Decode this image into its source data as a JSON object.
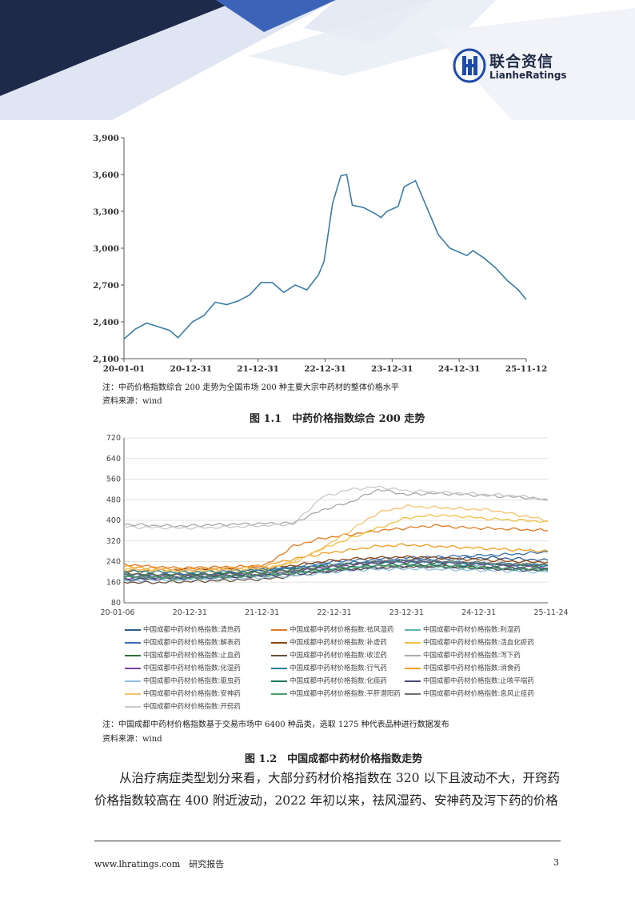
{
  "header": {
    "logo_cn": "联合资信",
    "logo_en": "LianheRatings",
    "colors": {
      "navy": "#1e2a4a",
      "blue": "#3b63b8",
      "light": "#c9d3ea"
    }
  },
  "figure1": {
    "note": "注：中药价格指数综合 200 走势为全国市场 200 种主要大宗中药材的整体价格水平",
    "source": "资料来源：wind",
    "caption": "图 1.1　中药价格指数综合 200 走势"
  },
  "figure2": {
    "note": "注：中国成都中药材价格指数基于交易市场中 6400 种品类，选取 1275 种代表品种进行数据发布",
    "source": "资料来源：wind",
    "caption": "图 1.2　中国成都中药材价格指数走势"
  },
  "body": {
    "para_line1": "从治疗病症类型划分来看，大部分药材价格指数在 320 以下且波动不大，开窍药",
    "para_line2": "价格指数较高在 400 附近波动，2022 年初以来，祛风湿药、安神药及泻下药的价格"
  },
  "footer": {
    "website": "www.lhratings.com　研究报告",
    "page_number": "3"
  },
  "chart_data": [
    {
      "type": "line",
      "x_ticks": [
        "20-01-01",
        "20-12-31",
        "21-12-31",
        "22-12-31",
        "23-12-31",
        "24-12-31",
        "25-11-12"
      ],
      "y_ticks": [
        "2,100",
        "2,400",
        "2,700",
        "3,000",
        "3,300",
        "3,600",
        "3,900"
      ],
      "ylim": [
        2100,
        3900
      ],
      "color": "#3a7ca5",
      "grid": false,
      "series": [
        {
          "x": [
            "2020-01-01",
            "2020-03-01",
            "2020-05-01",
            "2020-07-01",
            "2020-09-01",
            "2020-10-15",
            "2020-12-31",
            "2021-03-01",
            "2021-05-01",
            "2021-07-01",
            "2021-09-01",
            "2021-11-01",
            "2021-12-31",
            "2022-03-01",
            "2022-05-01",
            "2022-07-01",
            "2022-09-01",
            "2022-11-01",
            "2022-12-01",
            "2022-12-15",
            "2023-01-15",
            "2023-03-01",
            "2023-04-01",
            "2023-05-01",
            "2023-07-01",
            "2023-09-01",
            "2023-10-01",
            "2023-11-01",
            "2023-12-31",
            "2024-02-01",
            "2024-04-01",
            "2024-06-01",
            "2024-08-01",
            "2024-10-01",
            "2024-12-31",
            "2025-02-01",
            "2025-04-01",
            "2025-06-01",
            "2025-08-01",
            "2025-10-01",
            "2025-11-12"
          ],
          "values": [
            2260,
            2340,
            2390,
            2360,
            2330,
            2270,
            2400,
            2450,
            2560,
            2540,
            2570,
            2620,
            2720,
            2720,
            2640,
            2700,
            2660,
            2780,
            2890,
            3030,
            3360,
            3590,
            3600,
            3350,
            3330,
            3280,
            3250,
            3300,
            3340,
            3500,
            3550,
            3330,
            3110,
            3000,
            2940,
            2980,
            2920,
            2840,
            2740,
            2660,
            2580
          ]
        }
      ]
    },
    {
      "type": "line",
      "x_ticks": [
        "20-01-06",
        "20-12-31",
        "21-12-31",
        "22-12-31",
        "23-12-31",
        "24-12-31",
        "25-11-24"
      ],
      "y_ticks": [
        "80",
        "160",
        "240",
        "320",
        "400",
        "480",
        "560",
        "640",
        "720"
      ],
      "ylim": [
        80,
        720
      ],
      "grid": true,
      "series": [
        {
          "name": "中国成都中药材价格指数:清热药",
          "color": "#2e5e8c",
          "values": [
            180,
            185,
            190,
            188,
            200,
            210,
            215,
            225,
            230,
            240,
            245,
            250,
            252,
            255,
            250,
            245
          ]
        },
        {
          "name": "中国成都中药材价格指数:祛风湿药",
          "color": "#e07b24",
          "values": [
            230,
            220,
            215,
            218,
            220,
            225,
            300,
            330,
            345,
            360,
            370,
            380,
            372,
            368,
            365,
            360
          ]
        },
        {
          "name": "中国成都中药材价格指数:利湿药",
          "color": "#5bb5b0",
          "values": [
            170,
            175,
            172,
            178,
            182,
            190,
            200,
            210,
            220,
            225,
            230,
            228,
            225,
            230,
            228,
            226
          ]
        },
        {
          "name": "中国成都中药材价格指数:解表药",
          "color": "#3a6fb0",
          "values": [
            190,
            188,
            192,
            190,
            195,
            205,
            220,
            235,
            245,
            250,
            255,
            258,
            262,
            265,
            270,
            278
          ]
        },
        {
          "name": "中国成都中药材价格指数:补虚药",
          "color": "#8b4513",
          "values": [
            200,
            205,
            208,
            210,
            212,
            215,
            225,
            240,
            250,
            255,
            258,
            255,
            250,
            245,
            240,
            238
          ]
        },
        {
          "name": "中国成都中药材价格指数:活血化瘀药",
          "color": "#f0c040",
          "values": [
            210,
            205,
            200,
            202,
            205,
            210,
            240,
            290,
            330,
            370,
            410,
            420,
            415,
            405,
            400,
            395
          ]
        },
        {
          "name": "中国成都中药材价格指数:止血药",
          "color": "#2f6f3a",
          "values": [
            195,
            190,
            188,
            192,
            196,
            200,
            210,
            220,
            230,
            235,
            238,
            236,
            234,
            230,
            226,
            224
          ]
        },
        {
          "name": "中国成都中药材价格指数:收涩药",
          "color": "#6b4f3a",
          "values": [
            160,
            158,
            162,
            165,
            168,
            172,
            185,
            200,
            210,
            215,
            220,
            222,
            220,
            215,
            212,
            210
          ]
        },
        {
          "name": "中国成都中药材价格指数:泻下药",
          "color": "#a9a9a9",
          "values": [
            385,
            380,
            378,
            382,
            385,
            388,
            390,
            440,
            470,
            520,
            500,
            505,
            500,
            495,
            490,
            480
          ]
        },
        {
          "name": "中国成都中药材价格指数:化湿药",
          "color": "#7b3fa0",
          "values": [
            175,
            178,
            180,
            182,
            185,
            188,
            200,
            215,
            225,
            235,
            240,
            238,
            232,
            226,
            220,
            215
          ]
        },
        {
          "name": "中国成都中药材价格指数:行气药",
          "color": "#2a7f9e",
          "values": [
            205,
            200,
            198,
            200,
            205,
            210,
            215,
            225,
            235,
            240,
            242,
            240,
            236,
            232,
            228,
            225
          ]
        },
        {
          "name": "中国成都中药材价格指数:消食药",
          "color": "#f29d1f",
          "values": [
            220,
            215,
            210,
            212,
            215,
            225,
            250,
            270,
            285,
            300,
            305,
            300,
            295,
            290,
            285,
            280
          ]
        },
        {
          "name": "中国成都中药材价格指数:驱虫药",
          "color": "#8fc1e3",
          "values": [
            165,
            168,
            170,
            172,
            175,
            178,
            185,
            195,
            205,
            210,
            212,
            210,
            208,
            205,
            202,
            200
          ]
        },
        {
          "name": "中国成都中药材价格指数:化痰药",
          "color": "#1f7a5c",
          "values": [
            185,
            182,
            180,
            184,
            188,
            192,
            198,
            208,
            218,
            225,
            228,
            226,
            222,
            218,
            214,
            212
          ]
        },
        {
          "name": "中国成都中药材价格指数:止咳平喘药",
          "color": "#4a4a7a",
          "values": [
            170,
            172,
            175,
            178,
            180,
            185,
            192,
            200,
            210,
            218,
            222,
            220,
            216,
            212,
            208,
            205
          ]
        },
        {
          "name": "中国成都中药材价格指数:安神药",
          "color": "#f5c26b",
          "values": [
            210,
            208,
            205,
            207,
            210,
            215,
            235,
            290,
            360,
            430,
            455,
            450,
            445,
            440,
            420,
            400
          ]
        },
        {
          "name": "中国成都中药材价格指数:平肝潜阳药",
          "color": "#4f9e6a",
          "values": [
            180,
            178,
            176,
            178,
            182,
            186,
            195,
            205,
            215,
            222,
            225,
            222,
            218,
            214,
            210,
            208
          ]
        },
        {
          "name": "中国成都中药材价格指数:息风止痉药",
          "color": "#6e6e6e",
          "values": [
            190,
            188,
            186,
            188,
            192,
            196,
            205,
            218,
            230,
            240,
            245,
            242,
            238,
            234,
            230,
            228
          ]
        },
        {
          "name": "中国成都中药材价格指数:开窍药",
          "color": "#c8c8d2",
          "values": [
            375,
            372,
            370,
            372,
            375,
            380,
            385,
            490,
            520,
            530,
            515,
            510,
            505,
            500,
            495,
            478
          ]
        }
      ]
    }
  ]
}
